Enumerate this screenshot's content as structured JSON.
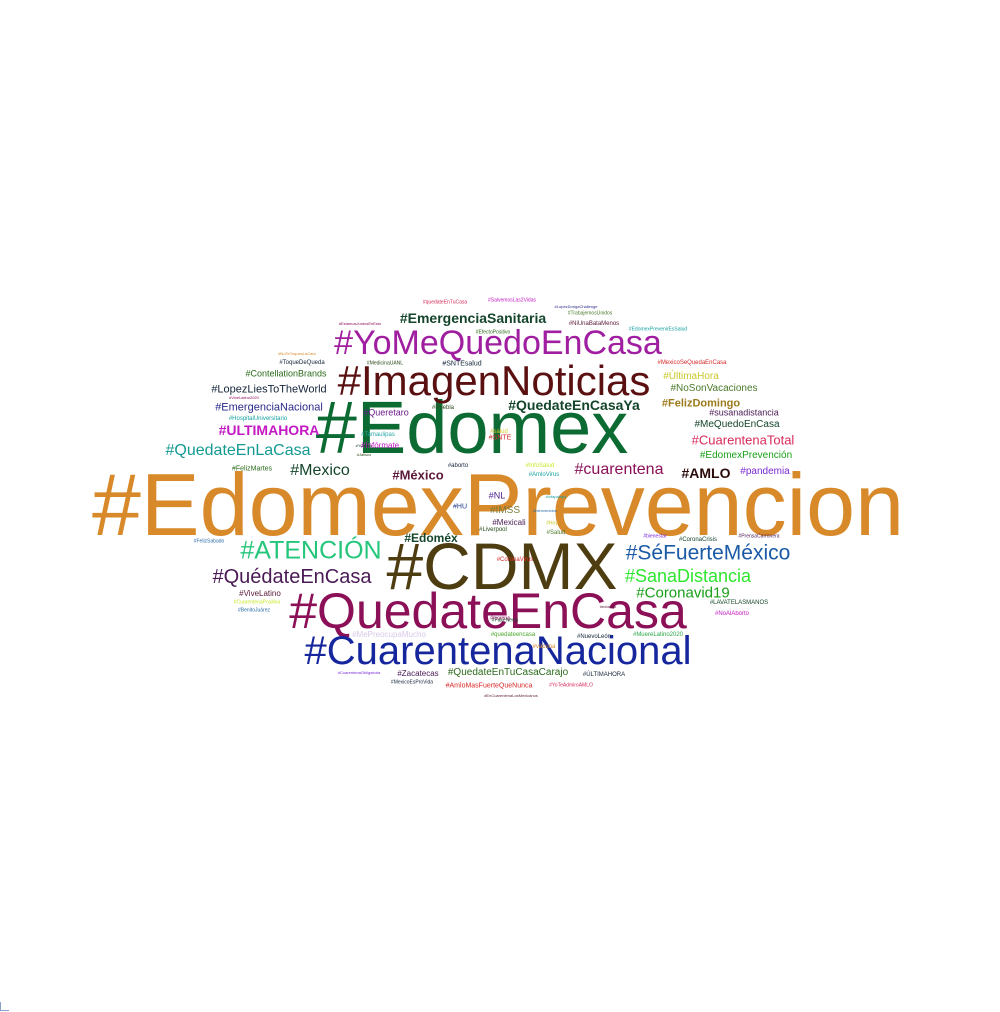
{
  "words": [
    {
      "text": "#EdomexPrevencion",
      "color": "#d8892a"
    },
    {
      "text": "#Edomex",
      "color": "#0c6b33"
    },
    {
      "text": "#CDMX",
      "color": "#4d3d10"
    },
    {
      "text": "#QuedateEnCasa",
      "color": "#8c1058"
    },
    {
      "text": "#CuarentenaNacional",
      "color": "#16279e"
    },
    {
      "text": "#ImagenNoticias",
      "color": "#5a1010"
    },
    {
      "text": "#YoMeQuedoEnCasa",
      "color": "#a01ea0"
    },
    {
      "text": "#SéFuerteMéxico",
      "color": "#1a5aa6"
    },
    {
      "text": "#ATENCIÓN",
      "color": "#23c67a"
    },
    {
      "text": "#QuédateEnCasa",
      "color": "#4a1a55"
    },
    {
      "text": "#SanaDistancia",
      "color": "#2ee62e"
    },
    {
      "text": "#QuedateEnLaCasa",
      "color": "#159a92"
    },
    {
      "text": "#Coronavid19",
      "color": "#18a018"
    },
    {
      "text": "#EmergenciaSanitaria",
      "color": "#14452a"
    },
    {
      "text": "#QuedateEnCasaYa",
      "color": "#14452a"
    },
    {
      "text": "#cuarentena",
      "color": "#8c1058"
    },
    {
      "text": "#Mexico",
      "color": "#14452a"
    },
    {
      "text": "#ULTIMAHORA",
      "color": "#c418c4"
    },
    {
      "text": "#CuarentenaTotal",
      "color": "#d82a5a"
    },
    {
      "text": "#AMLO",
      "color": "#2a0a0a"
    },
    {
      "text": "#México",
      "color": "#5a1a3a"
    },
    {
      "text": "#Edoméx",
      "color": "#14452a"
    },
    {
      "text": "#EmergenciaNacional",
      "color": "#2a2a8a"
    },
    {
      "text": "#LopezLiesToTheWorld",
      "color": "#14253a"
    },
    {
      "text": "#FelizDomingo",
      "color": "#9a7a1a"
    },
    {
      "text": "#MeQuedoEnCasa",
      "color": "#14452a"
    },
    {
      "text": "#EdomexPrevención",
      "color": "#18a018"
    },
    {
      "text": "#NoSonVacaciones",
      "color": "#4a7a2a"
    },
    {
      "text": "#ÚltimaHora",
      "color": "#c8c82a"
    },
    {
      "text": "#ContellationBrands",
      "color": "#2a6a1a"
    },
    {
      "text": "#QuedateEnTuCasaCarajo",
      "color": "#2a6a1a"
    },
    {
      "text": "#pandemia",
      "color": "#7a2ad8"
    },
    {
      "text": "#susanadistancia",
      "color": "#4a1a55"
    },
    {
      "text": "#IMSS",
      "color": "#7a7a3a"
    },
    {
      "text": "#Queretaro",
      "color": "#6a1a8a"
    },
    {
      "text": "#NL",
      "color": "#4a1a8a"
    },
    {
      "text": "#HU",
      "color": "#1a3a8a"
    },
    {
      "text": "#Mexicali",
      "color": "#4a1a55"
    },
    {
      "text": "#Infórmate",
      "color": "#c418c4"
    },
    {
      "text": "#Tamaulipas",
      "color": "#2aa8a8"
    },
    {
      "text": "#FelizMartes",
      "color": "#2a6a1a"
    },
    {
      "text": "#SNTE",
      "color": "#d82a2a"
    },
    {
      "text": "#salud",
      "color": "#d8c82a"
    },
    {
      "text": "#InfoSalud",
      "color": "#c8e82a"
    },
    {
      "text": "#AmloVirus",
      "color": "#18a0a0"
    },
    {
      "text": "#aborto",
      "color": "#14253a"
    },
    {
      "text": "#Puebla",
      "color": "#2a4a1a"
    },
    {
      "text": "#EmergenciaNacional",
      "color": "#2a2a8a"
    },
    {
      "text": "#HospitalUniversitario",
      "color": "#18a0a0"
    },
    {
      "text": "#ViveLatino",
      "color": "#5a1a3a"
    },
    {
      "text": "#CuarentenaPositiva",
      "color": "#c8e82a"
    },
    {
      "text": "#BenitoJuárez",
      "color": "#2a6aa8"
    },
    {
      "text": "#MePreocupaMucho",
      "color": "#d8c8e8"
    },
    {
      "text": "#quedateencasa",
      "color": "#4aa82a"
    },
    {
      "text": "#NuevoLeón",
      "color": "#14253a"
    },
    {
      "text": "#MuereLatino2020",
      "color": "#2aa84a"
    },
    {
      "text": "#Zacatecas",
      "color": "#4a1a55"
    },
    {
      "text": "#ÚLTIMAHORA",
      "color": "#14253a"
    },
    {
      "text": "#AmloMasFuerteQueNunca",
      "color": "#d82a2a"
    },
    {
      "text": "#YoTeAdmiroAMLO",
      "color": "#d82a5a"
    },
    {
      "text": "#MexicoEsProVida",
      "color": "#14253a"
    },
    {
      "text": "#CuarentenaObligatoria",
      "color": "#7a2ad8"
    },
    {
      "text": "#EnCuarentenaLosMexicanos",
      "color": "#5a1a3a"
    },
    {
      "text": "#LAVATELASMANOS",
      "color": "#14452a"
    },
    {
      "text": "#NoAlAborto",
      "color": "#c418c4"
    },
    {
      "text": "#CoronaCrisis",
      "color": "#14452a"
    },
    {
      "text": "#PrensaCarronera",
      "color": "#4a1a55"
    },
    {
      "text": "#FelizSabado",
      "color": "#2a6aa8"
    },
    {
      "text": "#ToqueDeQueda",
      "color": "#14253a"
    },
    {
      "text": "#MedicinaUANL",
      "color": "#2a4a1a"
    },
    {
      "text": "#SNTEsalud",
      "color": "#14253a"
    },
    {
      "text": "#MexicoSeQuedaEnCasa",
      "color": "#d82a2a"
    },
    {
      "text": "#NoTeToquesLaCara",
      "color": "#d8892a"
    },
    {
      "text": "#ViveLatino2020",
      "color": "#8c1058"
    },
    {
      "text": "#quedateEnTuCasa",
      "color": "#d82a5a"
    },
    {
      "text": "#SalvemosLas2Vidas",
      "color": "#c418c4"
    },
    {
      "text": "#LopezDorigaChallenge",
      "color": "#2a2a8a"
    },
    {
      "text": "#TrabajemosUnidos",
      "color": "#4a7a2a"
    },
    {
      "text": "#NiUnaBataMenos",
      "color": "#5a1a3a"
    },
    {
      "text": "#EdomexPrevenirEsSalud",
      "color": "#18a0a0"
    },
    {
      "text": "#EfectoPositivo",
      "color": "#2a6a1a"
    },
    {
      "text": "#EstamosJuntosEnEsto",
      "color": "#8c1058"
    },
    {
      "text": "#Liverpool",
      "color": "#2a4a1a"
    },
    {
      "text": "#FakeNews",
      "color": "#14452a"
    },
    {
      "text": "#morena",
      "color": "#8c1058"
    },
    {
      "text": "#CoronaVirus",
      "color": "#d82a2a"
    },
    {
      "text": "#Salud",
      "color": "#4a7a2a"
    },
    {
      "text": "#Hoy",
      "color": "#c8c82a"
    },
    {
      "text": "#vacuna",
      "color": "#d8892a"
    },
    {
      "text": "#Yucatan",
      "color": "#14452a"
    },
    {
      "text": "#Jalisco",
      "color": "#2a4a1a"
    },
    {
      "text": "#edomex",
      "color": "#5a1a3a"
    },
    {
      "text": "#bienvenidos",
      "color": "#2a6aa8"
    },
    {
      "text": "#Iztapalapa",
      "color": "#18a0a0"
    },
    {
      "text": "#bienestar",
      "color": "#7a2ad8"
    }
  ]
}
